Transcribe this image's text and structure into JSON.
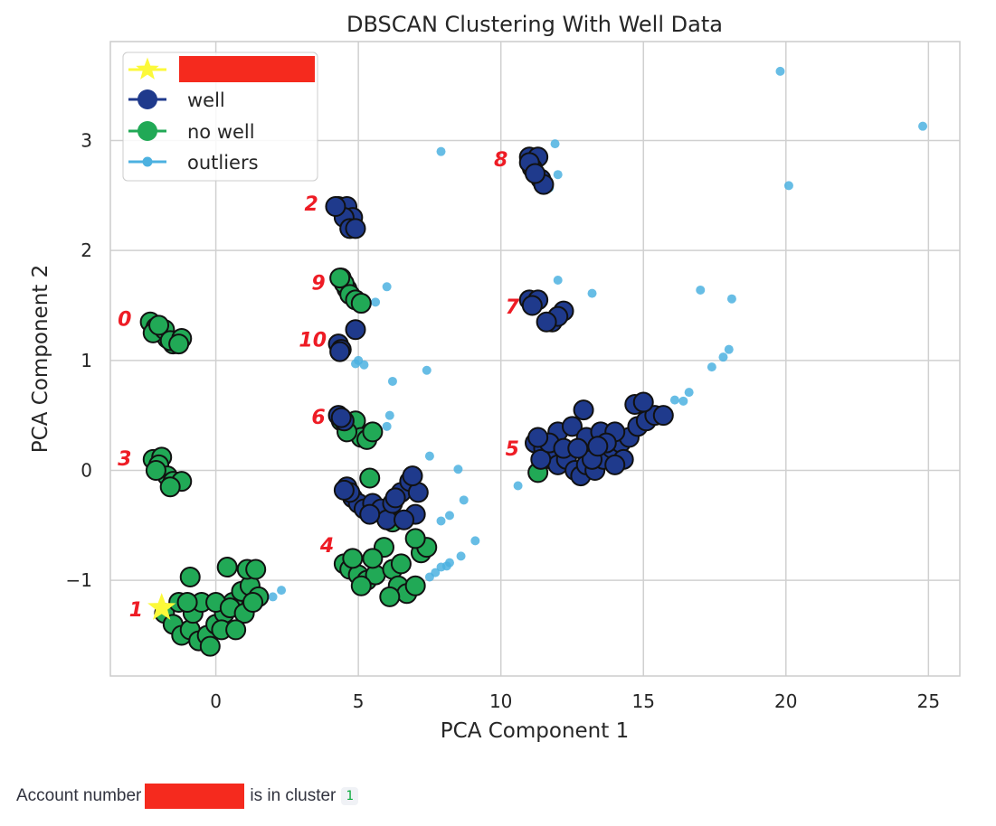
{
  "chart_data": {
    "type": "scatter",
    "title": "DBSCAN Clustering With Well Data",
    "xlabel": "PCA Component 1",
    "ylabel": "PCA Component 2",
    "xlim": [
      -3.7,
      26.1
    ],
    "ylim": [
      -1.87,
      3.9
    ],
    "xticks": [
      0,
      5,
      10,
      15,
      20,
      25
    ],
    "xtick_labels": [
      "0",
      "5",
      "10",
      "15",
      "20",
      "25"
    ],
    "yticks": [
      -1,
      0,
      1,
      2,
      3
    ],
    "ytick_labels": [
      "−1",
      "0",
      "1",
      "2",
      "3"
    ],
    "grid": true,
    "legend": {
      "position": "top-left",
      "entries": [
        {
          "label": "",
          "marker": "star",
          "redacted": true
        },
        {
          "label": "well",
          "marker": "circle"
        },
        {
          "label": "no well",
          "marker": "circle"
        },
        {
          "label": "outliers",
          "marker": "dot"
        }
      ]
    },
    "colors": {
      "well": "#1f3a8c",
      "no_well": "#21a956",
      "outlier": "#4cb1e0",
      "star": "#fcf93a",
      "cluster_label": "#ee1c25",
      "edge": "#111111",
      "grid": "#d0d0d0",
      "redaction": "#f52a1e"
    },
    "series": [
      {
        "name": "well",
        "points": [
          [
            4.3,
            2.4
          ],
          [
            4.6,
            2.4
          ],
          [
            4.8,
            2.3
          ],
          [
            4.5,
            2.3
          ],
          [
            4.7,
            2.2
          ],
          [
            4.2,
            2.4
          ],
          [
            4.9,
            2.2
          ],
          [
            11.0,
            2.85
          ],
          [
            11.3,
            2.85
          ],
          [
            11.1,
            2.75
          ],
          [
            11.4,
            2.65
          ],
          [
            11.5,
            2.6
          ],
          [
            11.0,
            2.8
          ],
          [
            11.2,
            2.7
          ],
          [
            11.0,
            1.55
          ],
          [
            11.3,
            1.55
          ],
          [
            11.1,
            1.5
          ],
          [
            12.2,
            1.45
          ],
          [
            11.8,
            1.35
          ],
          [
            12.0,
            1.4
          ],
          [
            11.6,
            1.35
          ],
          [
            4.3,
            1.15
          ],
          [
            4.4,
            1.1
          ],
          [
            4.35,
            1.08
          ],
          [
            4.9,
            1.28
          ],
          [
            4.3,
            0.5
          ],
          [
            4.5,
            0.45
          ],
          [
            4.4,
            0.48
          ],
          [
            4.6,
            -0.15
          ],
          [
            4.8,
            -0.25
          ],
          [
            5.0,
            -0.3
          ],
          [
            5.2,
            -0.35
          ],
          [
            5.5,
            -0.3
          ],
          [
            5.8,
            -0.35
          ],
          [
            6.0,
            -0.45
          ],
          [
            6.2,
            -0.3
          ],
          [
            6.5,
            -0.2
          ],
          [
            6.8,
            -0.1
          ],
          [
            7.1,
            -0.2
          ],
          [
            7.0,
            -0.4
          ],
          [
            6.6,
            -0.45
          ],
          [
            6.3,
            -0.25
          ],
          [
            4.7,
            -0.2
          ],
          [
            6.9,
            -0.05
          ],
          [
            5.4,
            -0.4
          ],
          [
            4.5,
            -0.18
          ],
          [
            11.2,
            0.25
          ],
          [
            11.5,
            0.2
          ],
          [
            11.8,
            0.1
          ],
          [
            12.0,
            0.05
          ],
          [
            12.3,
            0.1
          ],
          [
            12.6,
            0.0
          ],
          [
            12.8,
            -0.05
          ],
          [
            13.0,
            0.05
          ],
          [
            13.3,
            0.0
          ],
          [
            13.6,
            0.1
          ],
          [
            13.9,
            0.2
          ],
          [
            14.2,
            0.25
          ],
          [
            14.5,
            0.3
          ],
          [
            14.8,
            0.4
          ],
          [
            15.1,
            0.45
          ],
          [
            15.4,
            0.5
          ],
          [
            14.7,
            0.6
          ],
          [
            15.0,
            0.62
          ],
          [
            12.0,
            0.35
          ],
          [
            12.5,
            0.4
          ],
          [
            13.0,
            0.3
          ],
          [
            13.5,
            0.35
          ],
          [
            14.0,
            0.35
          ],
          [
            11.4,
            0.1
          ],
          [
            11.7,
            0.25
          ],
          [
            12.2,
            0.2
          ],
          [
            12.9,
            0.55
          ],
          [
            13.2,
            0.1
          ],
          [
            13.7,
            0.25
          ],
          [
            14.3,
            0.1
          ],
          [
            14.0,
            0.05
          ],
          [
            11.3,
            0.3
          ],
          [
            15.7,
            0.5
          ],
          [
            12.7,
            0.2
          ],
          [
            13.4,
            0.22
          ]
        ]
      },
      {
        "name": "no well",
        "points": [
          [
            -2.3,
            1.35
          ],
          [
            -2.1,
            1.3
          ],
          [
            -1.9,
            1.25
          ],
          [
            -1.7,
            1.2
          ],
          [
            -1.5,
            1.15
          ],
          [
            -2.2,
            1.25
          ],
          [
            -1.8,
            1.28
          ],
          [
            -1.6,
            1.18
          ],
          [
            -1.2,
            1.2
          ],
          [
            -1.3,
            1.15
          ],
          [
            -2.0,
            1.32
          ],
          [
            -2.2,
            0.1
          ],
          [
            -1.9,
            0.12
          ],
          [
            -2.0,
            0.05
          ],
          [
            -1.7,
            -0.05
          ],
          [
            -1.5,
            -0.1
          ],
          [
            -1.2,
            -0.1
          ],
          [
            -1.6,
            -0.15
          ],
          [
            -2.1,
            0.0
          ],
          [
            4.4,
            1.75
          ],
          [
            4.6,
            1.65
          ],
          [
            4.5,
            1.7
          ],
          [
            4.7,
            1.6
          ],
          [
            4.9,
            1.55
          ],
          [
            5.1,
            1.52
          ],
          [
            4.35,
            1.75
          ],
          [
            4.4,
            0.45
          ],
          [
            4.7,
            0.4
          ],
          [
            4.9,
            0.45
          ],
          [
            5.1,
            0.3
          ],
          [
            5.3,
            0.28
          ],
          [
            5.5,
            0.35
          ],
          [
            4.6,
            0.35
          ],
          [
            5.4,
            -0.07
          ],
          [
            6.2,
            -0.47
          ],
          [
            4.5,
            -0.85
          ],
          [
            4.7,
            -0.9
          ],
          [
            5.0,
            -0.95
          ],
          [
            5.3,
            -1.0
          ],
          [
            5.6,
            -0.95
          ],
          [
            5.9,
            -0.7
          ],
          [
            6.2,
            -0.9
          ],
          [
            6.4,
            -1.05
          ],
          [
            6.7,
            -1.12
          ],
          [
            7.0,
            -1.05
          ],
          [
            7.2,
            -0.75
          ],
          [
            7.4,
            -0.7
          ],
          [
            6.5,
            -0.85
          ],
          [
            5.1,
            -1.05
          ],
          [
            4.8,
            -0.8
          ],
          [
            5.5,
            -0.8
          ],
          [
            7.0,
            -0.62
          ],
          [
            6.1,
            -1.15
          ],
          [
            -1.8,
            -1.3
          ],
          [
            -1.5,
            -1.4
          ],
          [
            -1.2,
            -1.5
          ],
          [
            -0.9,
            -1.45
          ],
          [
            -0.6,
            -1.55
          ],
          [
            -0.3,
            -1.5
          ],
          [
            0.0,
            -1.4
          ],
          [
            0.3,
            -1.3
          ],
          [
            0.6,
            -1.2
          ],
          [
            0.9,
            -1.1
          ],
          [
            1.2,
            -1.05
          ],
          [
            1.5,
            -1.15
          ],
          [
            -0.8,
            -1.3
          ],
          [
            -0.5,
            -1.2
          ],
          [
            0.0,
            -1.2
          ],
          [
            0.5,
            -1.25
          ],
          [
            1.0,
            -1.3
          ],
          [
            -0.9,
            -0.97
          ],
          [
            0.4,
            -0.88
          ],
          [
            1.1,
            -0.9
          ],
          [
            1.4,
            -0.9
          ],
          [
            -1.3,
            -1.2
          ],
          [
            0.2,
            -1.45
          ],
          [
            -0.2,
            -1.6
          ],
          [
            0.7,
            -1.45
          ],
          [
            1.3,
            -1.2
          ],
          [
            -1.0,
            -1.2
          ],
          [
            11.3,
            -0.02
          ]
        ]
      },
      {
        "name": "outliers",
        "points": [
          [
            19.8,
            3.63
          ],
          [
            24.8,
            3.13
          ],
          [
            20.1,
            2.59
          ],
          [
            7.9,
            2.9
          ],
          [
            11.9,
            2.97
          ],
          [
            12.0,
            2.69
          ],
          [
            11.7,
            2.57
          ],
          [
            5.0,
            2.2
          ],
          [
            6.0,
            1.67
          ],
          [
            5.6,
            1.53
          ],
          [
            12.0,
            1.73
          ],
          [
            13.2,
            1.61
          ],
          [
            12.3,
            1.42
          ],
          [
            17.0,
            1.64
          ],
          [
            18.1,
            1.56
          ],
          [
            18.0,
            1.1
          ],
          [
            17.8,
            1.03
          ],
          [
            17.4,
            0.94
          ],
          [
            16.6,
            0.71
          ],
          [
            16.4,
            0.63
          ],
          [
            16.1,
            0.64
          ],
          [
            7.4,
            0.91
          ],
          [
            6.2,
            0.81
          ],
          [
            5.0,
            1.0
          ],
          [
            4.9,
            0.97
          ],
          [
            5.2,
            0.96
          ],
          [
            6.1,
            0.5
          ],
          [
            6.0,
            0.4
          ],
          [
            7.5,
            0.13
          ],
          [
            8.5,
            0.01
          ],
          [
            8.7,
            -0.27
          ],
          [
            8.2,
            -0.41
          ],
          [
            7.9,
            -0.46
          ],
          [
            9.1,
            -0.64
          ],
          [
            8.6,
            -0.78
          ],
          [
            8.2,
            -0.84
          ],
          [
            8.1,
            -0.87
          ],
          [
            7.9,
            -0.88
          ],
          [
            7.7,
            -0.93
          ],
          [
            7.5,
            -0.97
          ],
          [
            10.6,
            -0.14
          ],
          [
            2.0,
            -1.15
          ],
          [
            2.3,
            -1.09
          ]
        ]
      }
    ],
    "highlight": {
      "x": -1.9,
      "y": -1.25
    },
    "cluster_labels": [
      {
        "label": "0",
        "x": -3.2,
        "y": 1.38
      },
      {
        "label": "1",
        "x": -2.8,
        "y": -1.26
      },
      {
        "label": "2",
        "x": 3.35,
        "y": 2.43
      },
      {
        "label": "3",
        "x": -3.2,
        "y": 0.11
      },
      {
        "label": "4",
        "x": 3.9,
        "y": -0.68
      },
      {
        "label": "5",
        "x": 10.4,
        "y": 0.2
      },
      {
        "label": "6",
        "x": 3.6,
        "y": 0.49
      },
      {
        "label": "7",
        "x": 10.4,
        "y": 1.49
      },
      {
        "label": "8",
        "x": 10.0,
        "y": 2.83
      },
      {
        "label": "9",
        "x": 3.6,
        "y": 1.71
      },
      {
        "label": "10",
        "x": 3.4,
        "y": 1.19
      }
    ]
  },
  "caption": {
    "prefix": "Account number",
    "suffix": "is in cluster",
    "cluster": "1"
  }
}
